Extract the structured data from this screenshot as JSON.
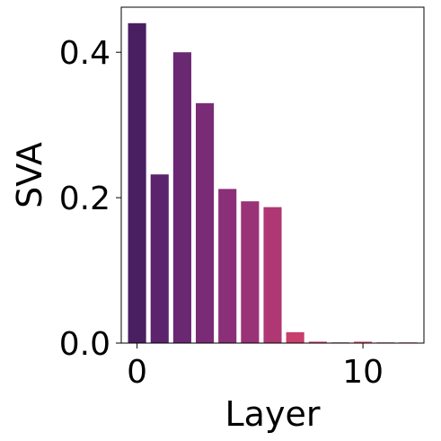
{
  "chart_data": {
    "type": "bar",
    "xlabel": "Layer",
    "ylabel": "SVA",
    "x": [
      0,
      1,
      2,
      3,
      4,
      5,
      6,
      7,
      8,
      9,
      10,
      11,
      12
    ],
    "values": [
      0.44,
      0.232,
      0.4,
      0.33,
      0.212,
      0.195,
      0.187,
      0.015,
      0.002,
      0.001,
      0.002,
      0.001,
      0.001
    ],
    "colors": [
      "#4a1f62",
      "#5b246c",
      "#6a2872",
      "#7a2b76",
      "#8a2f78",
      "#9a3278",
      "#ae3774",
      "#c83e6c",
      "#d2466a",
      "#d54b69",
      "#d85068",
      "#db5567",
      "#de5a66"
    ],
    "xticks": [
      0,
      10
    ],
    "xtick_labels": [
      "0",
      "10"
    ],
    "yticks": [
      0.0,
      0.2,
      0.4
    ],
    "ytick_labels": [
      "0.0",
      "0.2",
      "0.4"
    ],
    "xlim": [
      -0.7,
      12.7
    ],
    "ylim": [
      0,
      0.462
    ],
    "grid": false,
    "legend": "none"
  }
}
